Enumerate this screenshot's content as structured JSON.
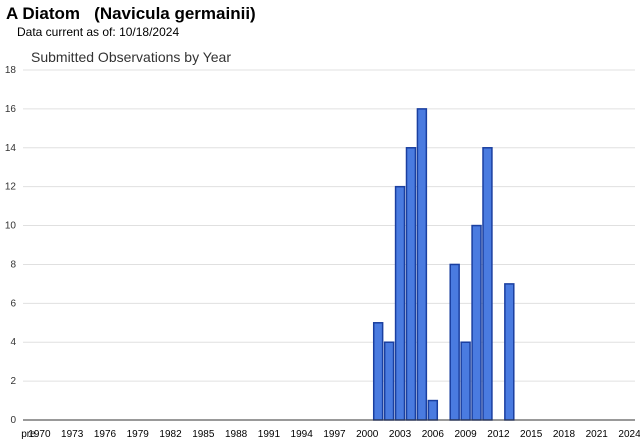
{
  "header": {
    "title": "A Diatom   (Navicula germainii)",
    "data_current_label": "Data current as of:",
    "data_current_date": "10/18/2024"
  },
  "colors": {
    "bar_fill": "#4a7be0",
    "bar_stroke": "#1a3fa0",
    "grid": "#e0e0e0",
    "axis": "#333333"
  },
  "chart_data": {
    "type": "bar",
    "title": "Submitted Observations by Year",
    "xlabel": "",
    "ylabel": "",
    "ylim": [
      0,
      18
    ],
    "y_ticks": [
      0,
      2,
      4,
      6,
      8,
      10,
      12,
      14,
      16,
      18
    ],
    "grid": true,
    "categories": [
      "pre",
      "1970",
      "1971",
      "1972",
      "1973",
      "1974",
      "1975",
      "1976",
      "1977",
      "1978",
      "1979",
      "1980",
      "1981",
      "1982",
      "1983",
      "1984",
      "1985",
      "1986",
      "1987",
      "1988",
      "1989",
      "1990",
      "1991",
      "1992",
      "1993",
      "1994",
      "1995",
      "1996",
      "1997",
      "1998",
      "1999",
      "2000",
      "2001",
      "2002",
      "2003",
      "2004",
      "2005",
      "2006",
      "2007",
      "2008",
      "2009",
      "2010",
      "2011",
      "2012",
      "2013",
      "2014",
      "2015",
      "2016",
      "2017",
      "2018",
      "2019",
      "2020",
      "2021",
      "2022",
      "2023",
      "2024"
    ],
    "x_tick_labels": [
      "pre",
      "1970",
      "1973",
      "1976",
      "1979",
      "1982",
      "1985",
      "1988",
      "1991",
      "1994",
      "1997",
      "2000",
      "2003",
      "2006",
      "2009",
      "2012",
      "2015",
      "2018",
      "2021",
      "2024"
    ],
    "values": [
      0,
      0,
      0,
      0,
      0,
      0,
      0,
      0,
      0,
      0,
      0,
      0,
      0,
      0,
      0,
      0,
      0,
      0,
      0,
      0,
      0,
      0,
      0,
      0,
      0,
      0,
      0,
      0,
      0,
      0,
      0,
      0,
      5,
      4,
      12,
      14,
      16,
      1,
      0,
      8,
      4,
      10,
      14,
      0,
      7,
      0,
      0,
      0,
      0,
      0,
      0,
      0,
      0,
      0,
      0,
      0
    ]
  }
}
